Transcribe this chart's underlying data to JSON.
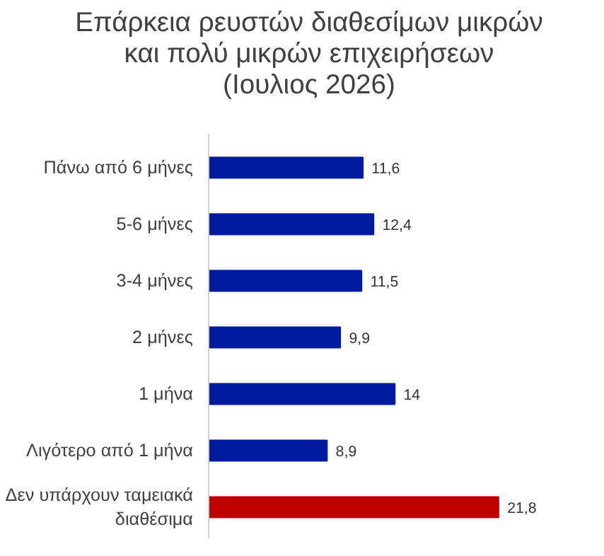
{
  "chart_data": {
    "type": "bar",
    "orientation": "horizontal",
    "title": "Επάρκεια ρευστών διαθεσίμων μικρών και πολύ μικρών επιχειρήσεων (Ιουλιος 2026)",
    "categories": [
      "Πάνω από 6 μήνες",
      "5-6 μήνες",
      "3-4 μήνες",
      "2 μήνες",
      "1 μήνα",
      "Λιγότερο από 1 μήνα",
      "Δεν υπάρχουν ταμειακά διαθέσιμα"
    ],
    "values": [
      11.6,
      12.4,
      11.5,
      9.9,
      14,
      8.9,
      21.8
    ],
    "colors": [
      "#001aa0",
      "#001aa0",
      "#001aa0",
      "#001aa0",
      "#001aa0",
      "#001aa0",
      "#c00000"
    ],
    "value_labels": [
      "11,6",
      "12,4",
      "11,5",
      "9,9",
      "14",
      "8,9",
      "21,8"
    ],
    "grid": false
  }
}
